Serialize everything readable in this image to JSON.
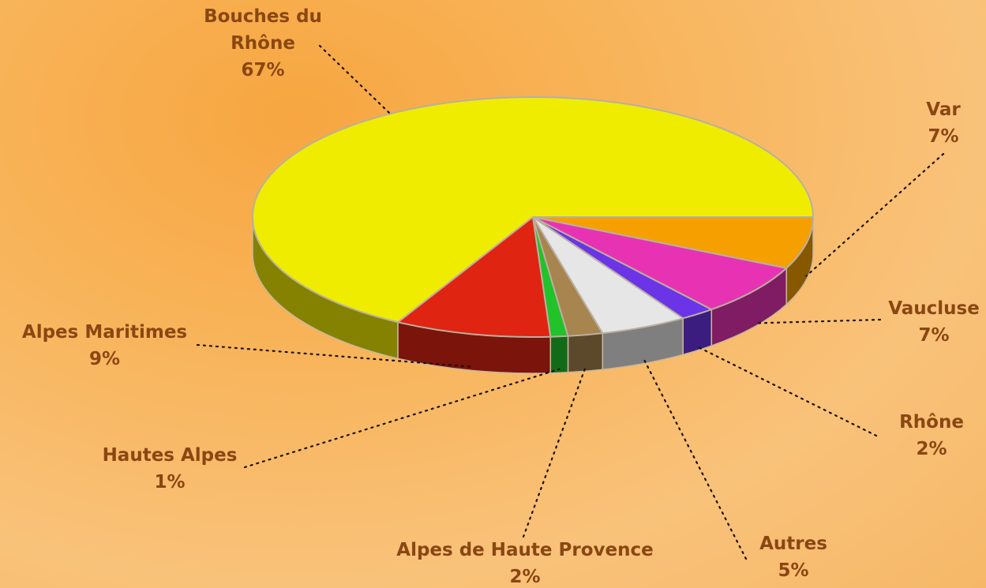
{
  "chart_data": {
    "type": "pie",
    "categories": [
      "Var",
      "Vaucluse",
      "Rhône",
      "Autres",
      "Alpes de Haute Provence",
      "Hautes Alpes",
      "Alpes Maritimes",
      "Bouches du Rhône"
    ],
    "values": [
      7,
      7,
      2,
      5,
      2,
      1,
      9,
      67
    ],
    "value_labels": [
      "7%",
      "7%",
      "2%",
      "5%",
      "2%",
      "1%",
      "9%",
      "67%"
    ],
    "colors": [
      "#f5a000",
      "#e832b4",
      "#6b34e6",
      "#e6e6e6",
      "#a8844e",
      "#22c22a",
      "#e02412",
      "#f0ec00"
    ]
  }
}
